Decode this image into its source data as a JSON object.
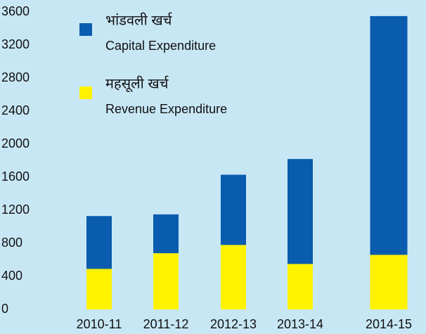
{
  "chart_data": {
    "type": "stacked_bar",
    "categories": [
      "2010-11",
      "2011-12",
      "2012-13",
      "2013-14",
      "2014-15"
    ],
    "series": [
      {
        "name": "महसूली खर्च",
        "subtitle": "Revenue Expenditure",
        "color": "#fff200",
        "values": [
          490,
          680,
          780,
          550,
          660
        ]
      },
      {
        "name": "भांडवली खर्च",
        "subtitle": "Capital Expenditure",
        "color": "#0a5cae",
        "values": [
          640,
          470,
          850,
          1270,
          2890
        ]
      }
    ],
    "ylim": [
      0,
      3600
    ],
    "yticks": [
      0,
      400,
      800,
      1200,
      1600,
      2000,
      2400,
      2800,
      3200,
      3600
    ],
    "legend": "top-left"
  }
}
